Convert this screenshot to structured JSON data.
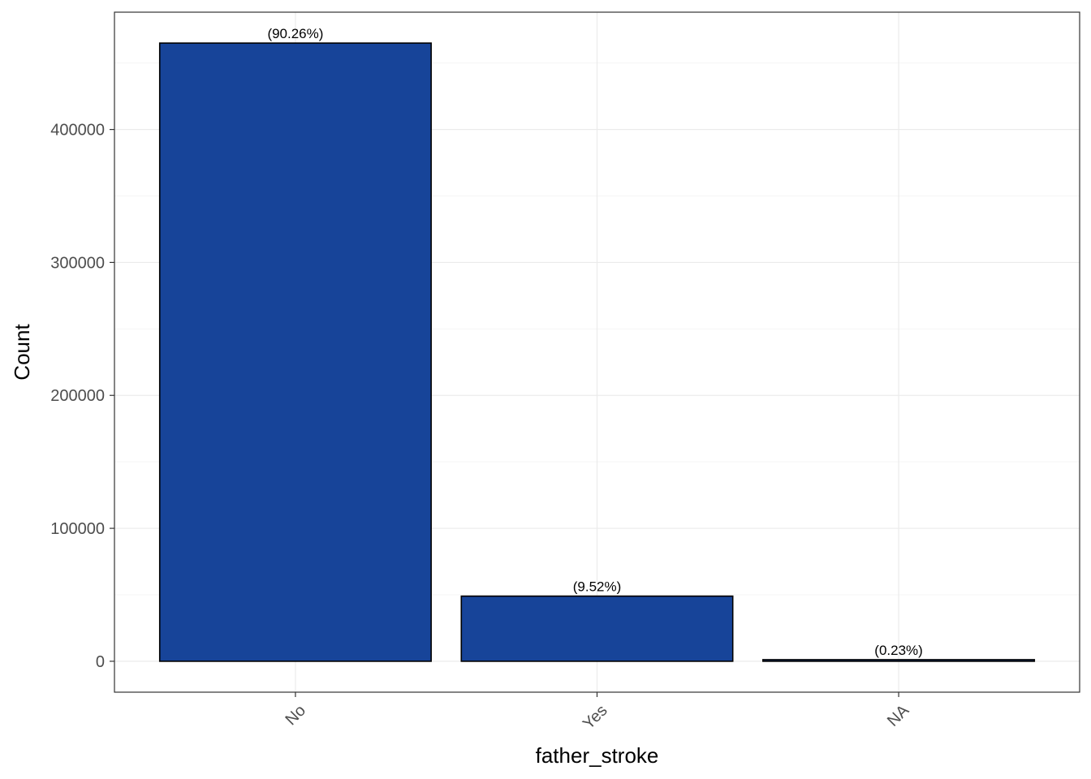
{
  "chart_data": {
    "type": "bar",
    "xlabel": "father_stroke",
    "ylabel": "Count",
    "categories": [
      "No",
      "Yes",
      "NA"
    ],
    "values": [
      465000,
      49000,
      1200
    ],
    "labels": [
      "(90.26%)",
      "(9.52%)",
      "(0.23%)"
    ],
    "ylim": [
      -23250,
      488250
    ],
    "yticks": [
      0,
      100000,
      200000,
      300000,
      400000
    ],
    "ytick_labels": [
      "0",
      "100000",
      "200000",
      "300000",
      "400000"
    ],
    "grid": true,
    "legend": "none",
    "x_tick_rotation_deg": 45,
    "colors": {
      "bar_fill": "#174499",
      "bar_stroke": "#000000",
      "grid_major": "#ebebeb",
      "grid_minor": "#f5f5f5",
      "panel_border": "#333333"
    }
  }
}
